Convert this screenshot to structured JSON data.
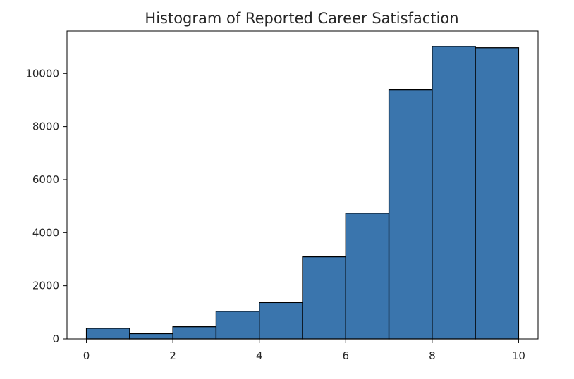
{
  "chart_data": {
    "type": "bar",
    "title": "Histogram of Reported Career Satisfaction",
    "xlabel": "",
    "ylabel": "",
    "bin_edges": [
      0,
      1,
      2,
      3,
      4,
      5,
      6,
      7,
      8,
      9,
      10
    ],
    "values": [
      400,
      200,
      460,
      1040,
      1370,
      3090,
      4730,
      9380,
      11020,
      10970
    ],
    "xlim": [
      -0.45,
      10.45
    ],
    "ylim": [
      0,
      11600
    ],
    "xticks": [
      0,
      2,
      4,
      6,
      8,
      10
    ],
    "yticks": [
      0,
      2000,
      4000,
      6000,
      8000,
      10000
    ],
    "xtick_labels": [
      "0",
      "2",
      "4",
      "6",
      "8",
      "10"
    ],
    "ytick_labels": [
      "0",
      "2000",
      "4000",
      "6000",
      "8000",
      "10000"
    ],
    "bar_color": "#3a75ad",
    "edge_color": "#000000",
    "grid": false
  }
}
